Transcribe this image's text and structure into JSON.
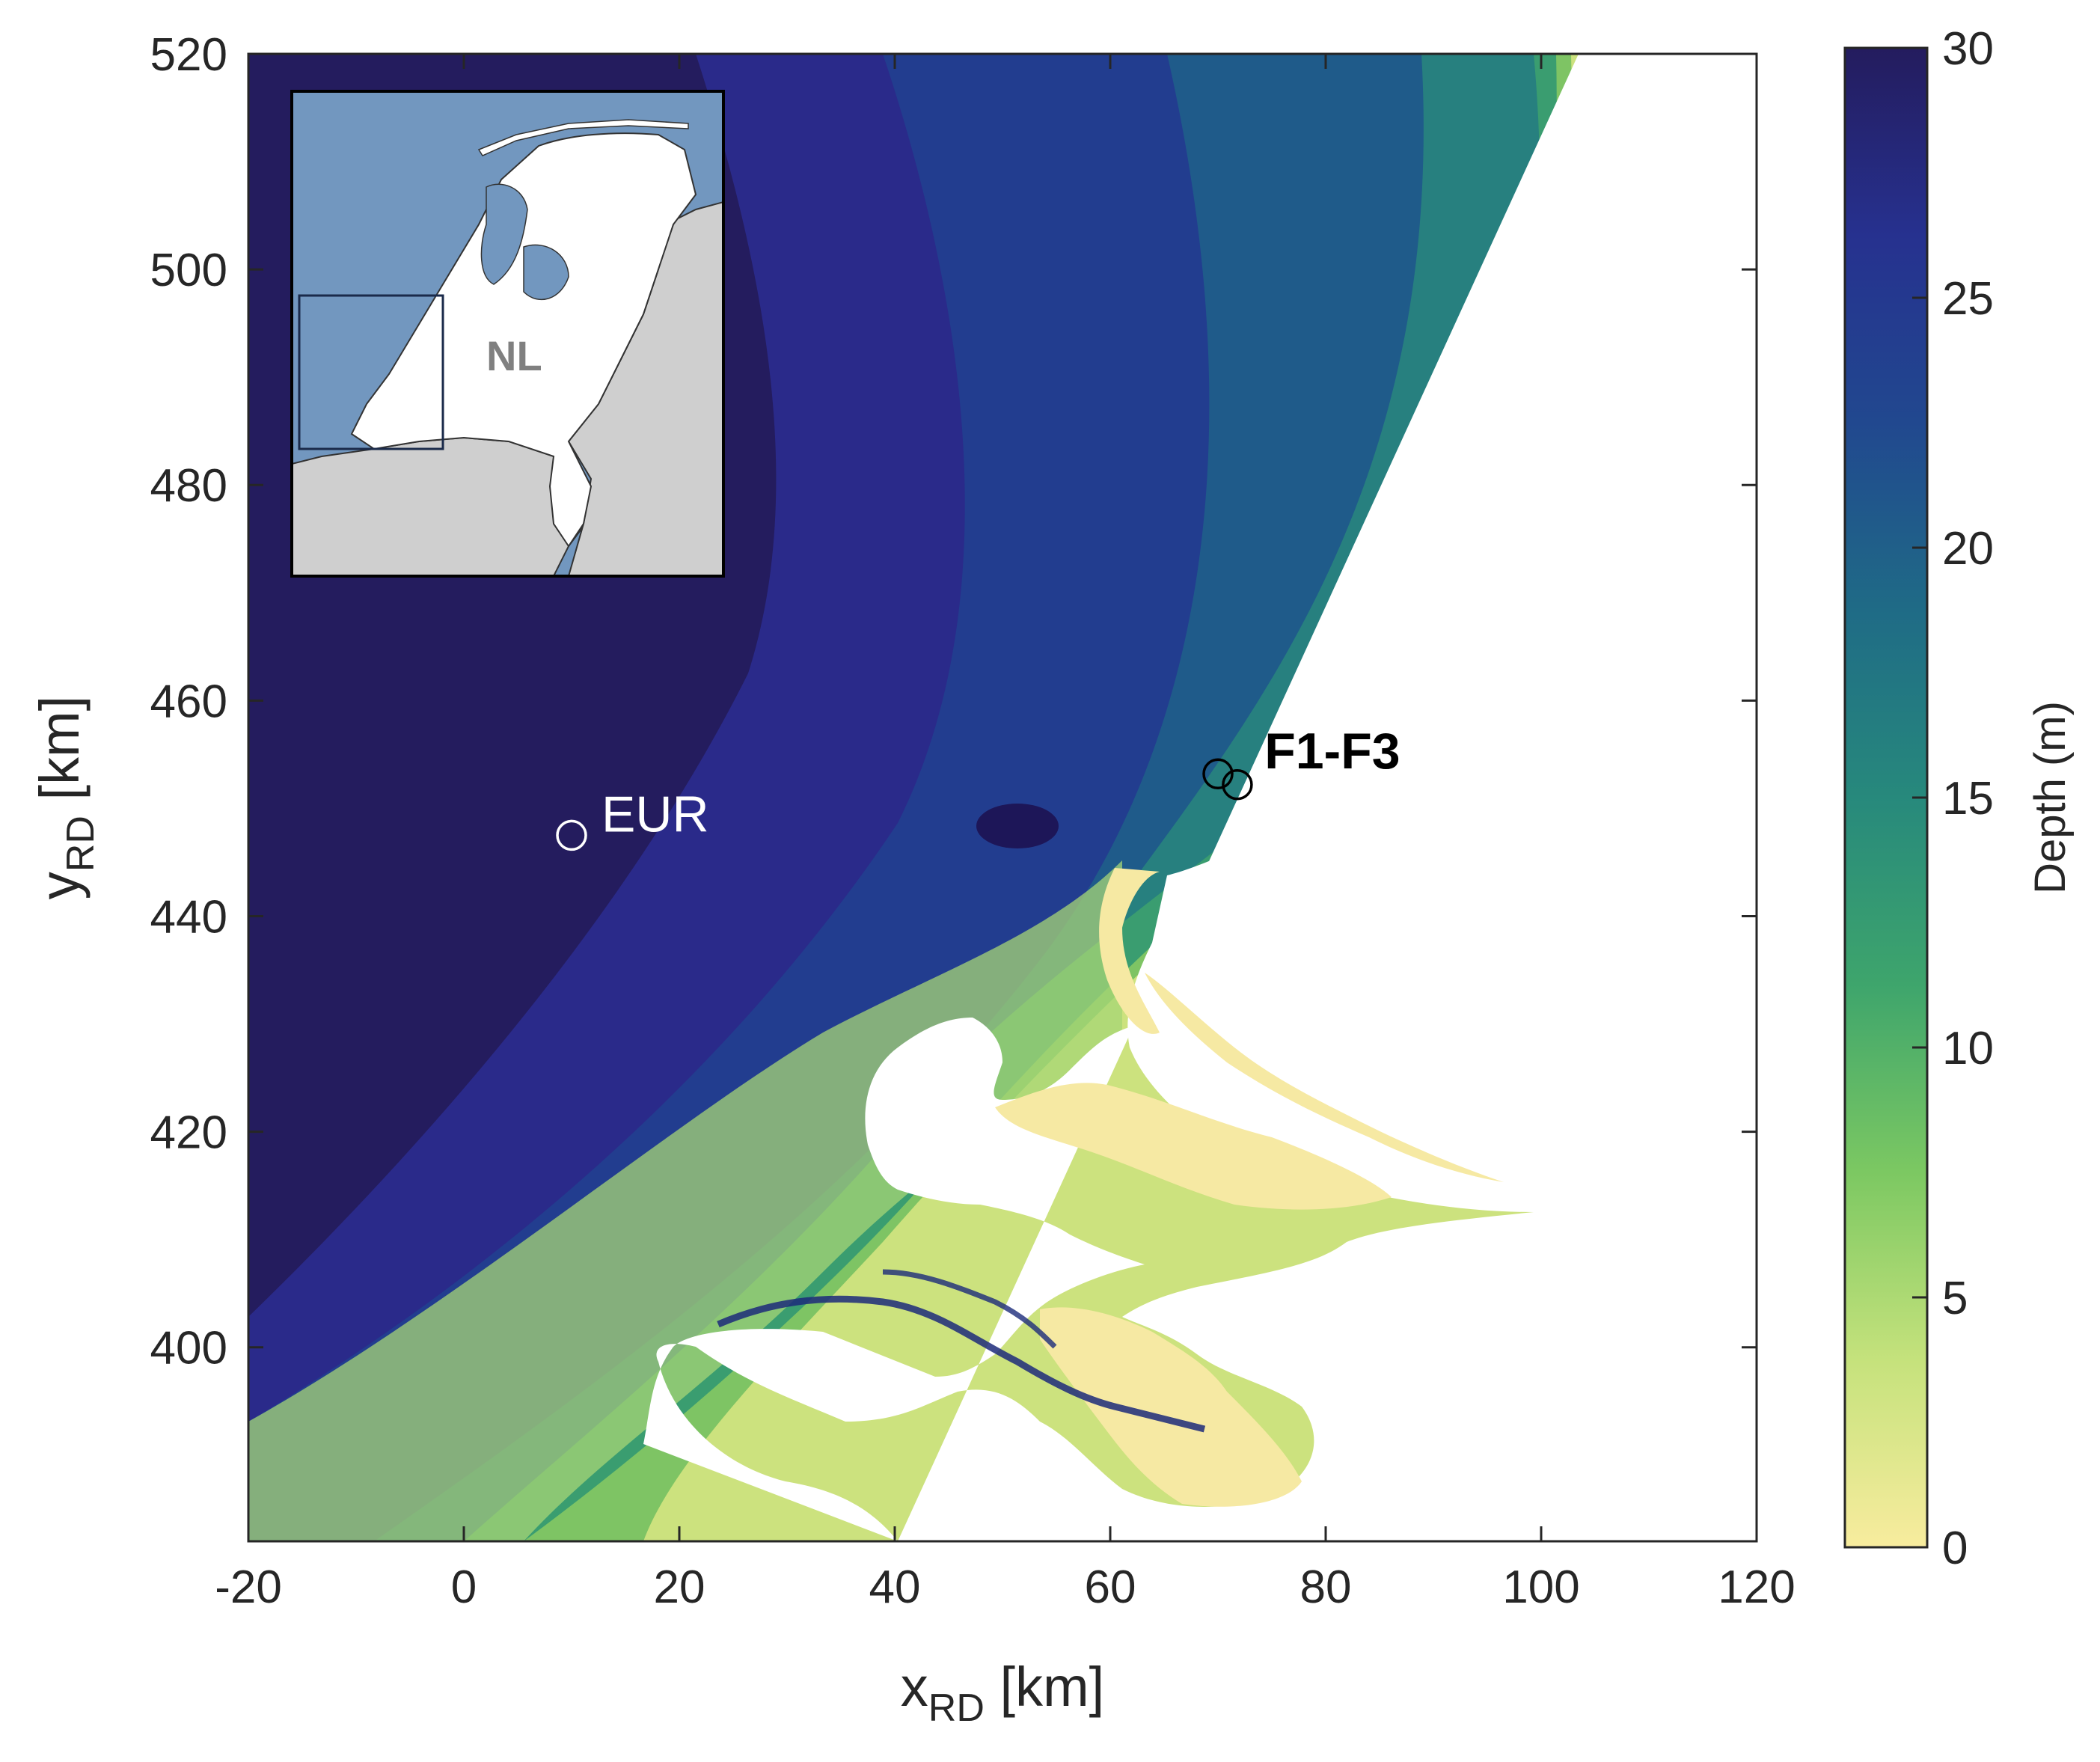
{
  "chart_data": {
    "type": "heatmap",
    "xlabel_main": "x",
    "xlabel_sub": "RD",
    "xlabel_unit": " [km]",
    "ylabel_main": "y",
    "ylabel_sub": "RD",
    "ylabel_unit": " [km]",
    "xlim": [
      -20,
      120
    ],
    "ylim": [
      382,
      520
    ],
    "x_ticks": [
      -20,
      0,
      20,
      40,
      60,
      80,
      100,
      120
    ],
    "y_ticks": [
      400,
      420,
      440,
      460,
      480,
      500,
      520
    ],
    "colorbar": {
      "label": "Depth (m)",
      "range": [
        0,
        30
      ],
      "ticks": [
        0,
        5,
        10,
        15,
        20,
        25,
        30
      ],
      "colormap": [
        "#f8ec9e",
        "#c5e27c",
        "#7cc862",
        "#3ea56c",
        "#27897c",
        "#1f6b86",
        "#21488f",
        "#26318f",
        "#241c5e"
      ]
    },
    "points": [
      {
        "label": "EUR",
        "x": 10,
        "y": 447.5,
        "color": "#ffffff",
        "bold": false
      },
      {
        "label": "F1-F3",
        "x": 70.5,
        "y": 453,
        "color": "#000000",
        "bold": true,
        "markers": [
          {
            "x": 70,
            "y": 453.2
          },
          {
            "x": 71.8,
            "y": 452.2
          }
        ]
      }
    ],
    "inset": {
      "label": "NL",
      "sea_color": "#7297bf",
      "land_color": "#ffffff",
      "neighbor_color": "#cfcfcf"
    }
  }
}
